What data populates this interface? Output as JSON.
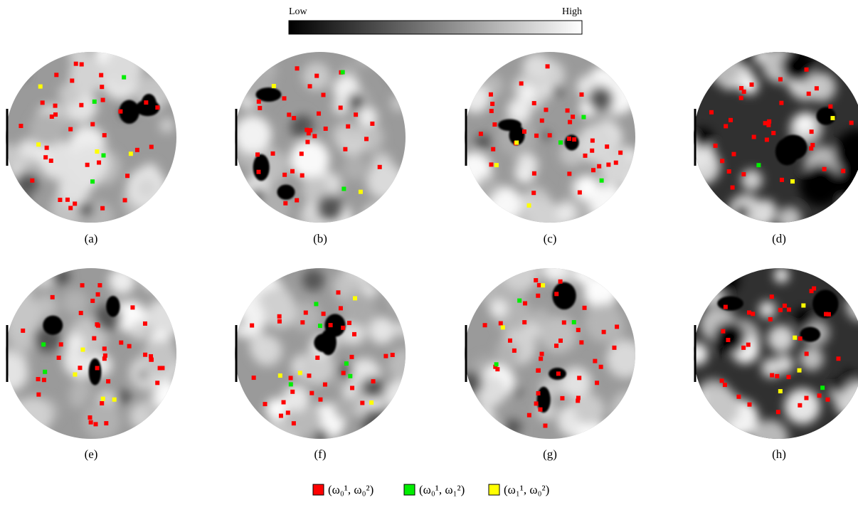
{
  "colorbar": {
    "low": "Low",
    "high": "High"
  },
  "panels": [
    "(a)",
    "(b)",
    "(c)",
    "(d)",
    "(e)",
    "(f)",
    "(g)",
    "(h)"
  ],
  "legend": [
    {
      "label": "(ω₀¹, ω₀²)",
      "color": "#ff0000"
    },
    {
      "label": "(ω₀¹, ω₁²)",
      "color": "#00ee00"
    },
    {
      "label": "(ω₁¹, ω₀²)",
      "color": "#ffff00"
    }
  ]
}
